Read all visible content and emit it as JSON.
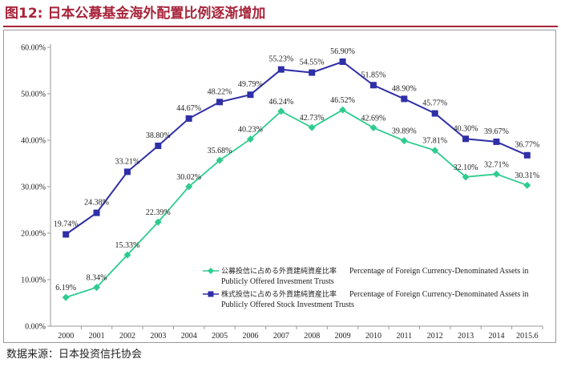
{
  "figure": {
    "title": "图12:  日本公募基金海外配置比例逐渐增加",
    "source": "数据来源：日本投资信托协会"
  },
  "chart_data": {
    "type": "line",
    "categories": [
      "2000",
      "2001",
      "2002",
      "2003",
      "2004",
      "2005",
      "2006",
      "2007",
      "2008",
      "2009",
      "2010",
      "2011",
      "2012",
      "2013",
      "2014",
      "2015.6"
    ],
    "ylim": [
      0,
      60
    ],
    "yticks": [
      "0.00%",
      "10.00%",
      "20.00%",
      "30.00%",
      "40.00%",
      "50.00%",
      "60.00%"
    ],
    "ytick_values": [
      0,
      10,
      20,
      30,
      40,
      50,
      60
    ],
    "grid": false,
    "legend_position": "lower-right",
    "colors": {
      "series_1": "#2ecc8f",
      "series_2": "#2f2fa8",
      "axis": "#999999"
    },
    "series": [
      {
        "name": "公募投信に占める外貨建純資産比率",
        "name_en": "Percentage of Foreign Currency-Denominated Assets in",
        "name_en_2": "Publicly Offered Investment Trusts",
        "marker": "diamond",
        "values": [
          6.19,
          8.34,
          15.33,
          22.39,
          30.02,
          35.68,
          40.23,
          46.24,
          42.73,
          46.52,
          42.69,
          39.89,
          37.81,
          32.1,
          32.71,
          30.31
        ],
        "labels": [
          "6.19%",
          "8.34%",
          "15.33%",
          "22.39%",
          "30.02%",
          "35.68%",
          "40.23%",
          "46.24%",
          "42.73%",
          "46.52%",
          "42.69%",
          "39.89%",
          "37.81%",
          "32.10%",
          "32.71%",
          "30.31%"
        ]
      },
      {
        "name": "株式投信に占める外貨建純資産比率",
        "name_en": "Percentage of Foreign Currency-Denominated Assets in",
        "name_en_2": "Publicly Offered Stock Investment Trusts",
        "marker": "square",
        "values": [
          19.74,
          24.38,
          33.21,
          38.8,
          44.67,
          48.22,
          49.79,
          55.23,
          54.55,
          56.9,
          51.85,
          48.9,
          45.77,
          40.3,
          39.67,
          36.77
        ],
        "labels": [
          "19.74%",
          "24.38%",
          "33.21%",
          "38.80%",
          "44.67%",
          "48.22%",
          "49.79%",
          "55.23%",
          "54.55%",
          "56.90%",
          "51.85%",
          "48.90%",
          "45.77%",
          "40.30%",
          "39.67%",
          "36.77%"
        ]
      }
    ]
  }
}
